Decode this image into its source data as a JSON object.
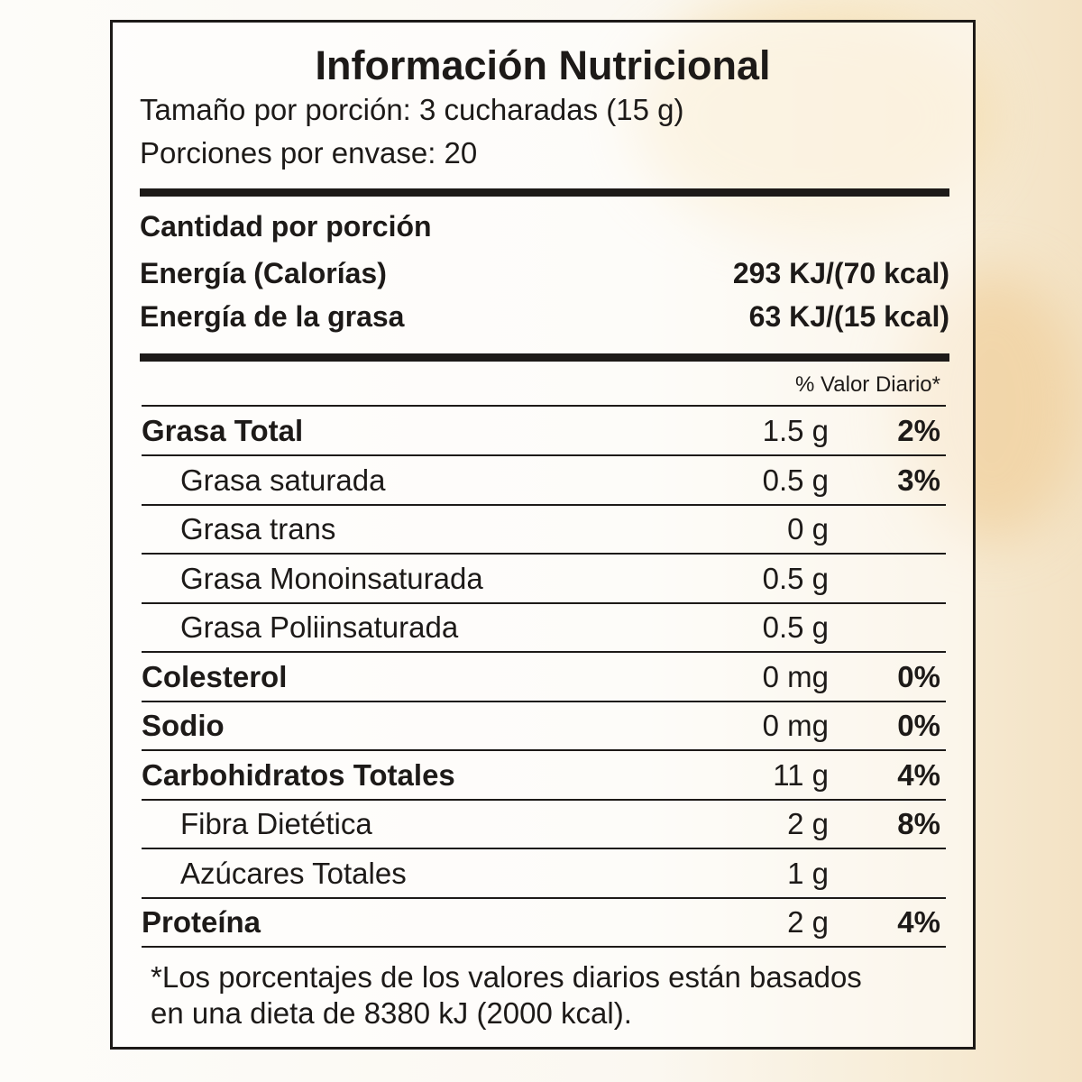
{
  "title": "Información Nutricional",
  "serving_size": "Tamaño por porción: 3 cucharadas (15 g)",
  "servings_per_container": "Porciones por envase: 20",
  "amount_per_serving": "Cantidad por porción",
  "energy": {
    "label": "Energía (Calorías)",
    "value": "293 KJ/(70 kcal)"
  },
  "energy_fat": {
    "label": "Energía de la grasa",
    "value": "63 KJ/(15 kcal)"
  },
  "daily_value_header": "% Valor Diario*",
  "rows": [
    {
      "name": "Grasa Total",
      "amount": "1.5 g",
      "pct": "2%"
    },
    {
      "name": "Grasa saturada",
      "amount": "0.5 g",
      "pct": "3%"
    },
    {
      "name": "Grasa trans",
      "amount": "0 g",
      "pct": ""
    },
    {
      "name": "Grasa Monoinsaturada",
      "amount": "0.5 g",
      "pct": ""
    },
    {
      "name": "Grasa Poliinsaturada",
      "amount": "0.5 g",
      "pct": ""
    },
    {
      "name": "Colesterol",
      "amount": "0 mg",
      "pct": "0%"
    },
    {
      "name": "Sodio",
      "amount": "0 mg",
      "pct": "0%"
    },
    {
      "name": "Carbohidratos Totales",
      "amount": "11 g",
      "pct": "4%"
    },
    {
      "name": "Fibra Dietética",
      "amount": "2 g",
      "pct": "8%"
    },
    {
      "name": "Azúcares Totales",
      "amount": "1 g",
      "pct": ""
    },
    {
      "name": "Proteína",
      "amount": "2 g",
      "pct": "4%"
    }
  ],
  "footnote": [
    "*Los porcentajes de los valores diarios están basados",
    "en una dieta de 8380 kJ (2000 kcal)."
  ]
}
